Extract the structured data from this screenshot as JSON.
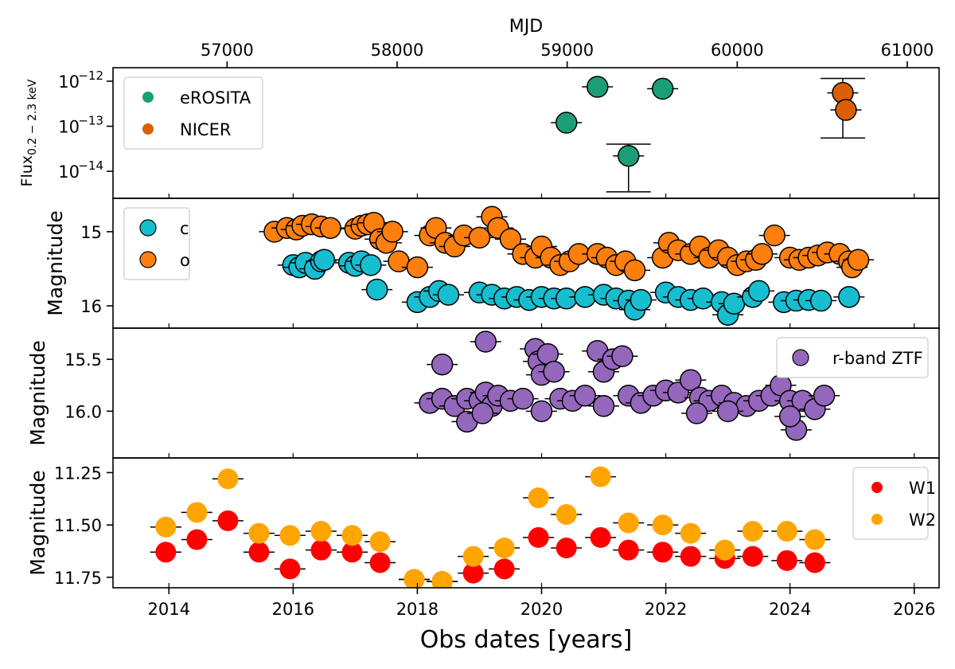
{
  "chart_data": {
    "type": "scatter",
    "top_axis": {
      "label": "MJD",
      "ticks": [
        57000,
        58000,
        59000,
        60000,
        61000
      ]
    },
    "x_axis": {
      "label": "Obs dates [years]",
      "ticks": [
        "2014",
        "2016",
        "2018",
        "2020",
        "2022",
        "2024",
        "2026"
      ],
      "xlim": [
        2013.1,
        2026.4
      ]
    },
    "panels": [
      {
        "id": "xray",
        "ylabel_main": "Flux",
        "ylabel_sub": "0.2 − 2.3 keV",
        "yscale": "log",
        "ylim_log10": [
          -14.6,
          -11.7
        ],
        "yticks": [
          {
            "base": "10",
            "exp": "−12"
          },
          {
            "base": "10",
            "exp": "−13"
          },
          {
            "base": "10",
            "exp": "−14"
          }
        ],
        "legend": {
          "position": "upper-left",
          "entries": [
            "eROSITA",
            "NICER"
          ]
        },
        "series": [
          {
            "name": "eROSITA",
            "color": "#1b9e77",
            "points": [
              {
                "x": 2020.4,
                "y": 1.2e-13,
                "xerr": 0.25
              },
              {
                "x": 2020.9,
                "y": 7.5e-13,
                "xerr": 0.25
              },
              {
                "x": 2021.4,
                "y": 2.2e-14,
                "xerr": 0.25,
                "ylo": 3.5e-15,
                "yhi": 4e-14
              },
              {
                "x": 2021.95,
                "y": 6.8e-13,
                "xerr": 0.25
              }
            ]
          },
          {
            "name": "NICER",
            "color": "#d95f02",
            "points": [
              {
                "x": 2024.85,
                "y": 5.5e-13,
                "xerr": 0.25,
                "ylo": 5.5e-14,
                "yhi": 1.15e-12
              },
              {
                "x": 2024.9,
                "y": 2.3e-13,
                "xerr": 0.25
              }
            ]
          }
        ]
      },
      {
        "id": "atlas",
        "ylabel_main": "Magnitude",
        "ylim": [
          16.3,
          14.55
        ],
        "yticks": [
          "15",
          "16"
        ],
        "legend": {
          "position": "upper-left",
          "entries": [
            "c",
            "o"
          ]
        },
        "series": [
          {
            "name": "c",
            "color": "#17becf",
            "points": [
              [
                2016.0,
                15.45
              ],
              [
                2016.1,
                15.48
              ],
              [
                2016.2,
                15.42
              ],
              [
                2016.35,
                15.5
              ],
              [
                2016.45,
                15.4
              ],
              [
                2016.5,
                15.38
              ],
              [
                2016.9,
                15.42
              ],
              [
                2017.0,
                15.46
              ],
              [
                2017.1,
                15.4
              ],
              [
                2017.25,
                15.45
              ],
              [
                2017.35,
                15.78
              ],
              [
                2018.0,
                15.95
              ],
              [
                2018.2,
                15.88
              ],
              [
                2018.35,
                15.8
              ],
              [
                2018.5,
                15.85
              ],
              [
                2019.0,
                15.82
              ],
              [
                2019.2,
                15.85
              ],
              [
                2019.4,
                15.9
              ],
              [
                2019.6,
                15.88
              ],
              [
                2019.8,
                15.92
              ],
              [
                2020.0,
                15.88
              ],
              [
                2020.2,
                15.9
              ],
              [
                2020.4,
                15.9
              ],
              [
                2020.7,
                15.88
              ],
              [
                2021.0,
                15.85
              ],
              [
                2021.2,
                15.9
              ],
              [
                2021.4,
                15.93
              ],
              [
                2021.5,
                16.05
              ],
              [
                2021.6,
                15.92
              ],
              [
                2022.0,
                15.82
              ],
              [
                2022.2,
                15.88
              ],
              [
                2022.4,
                15.92
              ],
              [
                2022.6,
                15.9
              ],
              [
                2022.9,
                15.95
              ],
              [
                2023.0,
                16.12
              ],
              [
                2023.1,
                15.97
              ],
              [
                2023.4,
                15.88
              ],
              [
                2023.5,
                15.8
              ],
              [
                2023.9,
                15.95
              ],
              [
                2024.1,
                15.93
              ],
              [
                2024.3,
                15.92
              ],
              [
                2024.5,
                15.93
              ],
              [
                2024.95,
                15.88
              ]
            ]
          },
          {
            "name": "o",
            "color": "#ff7f0e",
            "points": [
              [
                2015.7,
                15.0
              ],
              [
                2015.9,
                14.95
              ],
              [
                2016.05,
                14.97
              ],
              [
                2016.15,
                14.92
              ],
              [
                2016.3,
                14.9
              ],
              [
                2016.45,
                14.93
              ],
              [
                2016.6,
                14.95
              ],
              [
                2017.0,
                14.96
              ],
              [
                2017.1,
                14.92
              ],
              [
                2017.2,
                14.9
              ],
              [
                2017.3,
                14.88
              ],
              [
                2017.4,
                15.1
              ],
              [
                2017.5,
                15.15
              ],
              [
                2017.6,
                15.0
              ],
              [
                2017.7,
                15.4
              ],
              [
                2018.0,
                15.48
              ],
              [
                2018.2,
                15.05
              ],
              [
                2018.3,
                14.95
              ],
              [
                2018.45,
                15.15
              ],
              [
                2018.6,
                15.2
              ],
              [
                2018.75,
                15.05
              ],
              [
                2019.0,
                15.08
              ],
              [
                2019.2,
                14.8
              ],
              [
                2019.3,
                14.95
              ],
              [
                2019.5,
                15.1
              ],
              [
                2019.7,
                15.3
              ],
              [
                2019.9,
                15.35
              ],
              [
                2020.0,
                15.2
              ],
              [
                2020.15,
                15.35
              ],
              [
                2020.3,
                15.45
              ],
              [
                2020.45,
                15.4
              ],
              [
                2020.6,
                15.3
              ],
              [
                2020.9,
                15.3
              ],
              [
                2021.05,
                15.35
              ],
              [
                2021.2,
                15.45
              ],
              [
                2021.35,
                15.4
              ],
              [
                2021.5,
                15.52
              ],
              [
                2021.95,
                15.35
              ],
              [
                2022.05,
                15.15
              ],
              [
                2022.2,
                15.25
              ],
              [
                2022.4,
                15.3
              ],
              [
                2022.55,
                15.2
              ],
              [
                2022.7,
                15.35
              ],
              [
                2022.85,
                15.25
              ],
              [
                2023.0,
                15.35
              ],
              [
                2023.15,
                15.45
              ],
              [
                2023.3,
                15.4
              ],
              [
                2023.45,
                15.38
              ],
              [
                2023.55,
                15.3
              ],
              [
                2023.75,
                15.05
              ],
              [
                2024.0,
                15.35
              ],
              [
                2024.15,
                15.38
              ],
              [
                2024.3,
                15.35
              ],
              [
                2024.45,
                15.32
              ],
              [
                2024.6,
                15.28
              ],
              [
                2024.8,
                15.3
              ],
              [
                2024.95,
                15.4
              ],
              [
                2025.0,
                15.48
              ],
              [
                2025.1,
                15.38
              ]
            ]
          }
        ]
      },
      {
        "id": "ztf",
        "ylabel_main": "Magnitude",
        "ylim": [
          16.45,
          15.2
        ],
        "yticks": [
          "15.5",
          "16.0"
        ],
        "legend": {
          "position": "upper-right",
          "entries": [
            "r-band ZTF"
          ]
        },
        "series": [
          {
            "name": "r-band ZTF",
            "color": "#9467bd",
            "points": [
              [
                2018.4,
                15.55
              ],
              [
                2019.1,
                15.33
              ],
              [
                2018.2,
                15.92
              ],
              [
                2018.4,
                15.88
              ],
              [
                2018.6,
                15.95
              ],
              [
                2018.8,
                15.88
              ],
              [
                2019.0,
                15.9
              ],
              [
                2019.1,
                15.82
              ],
              [
                2019.2,
                15.95
              ],
              [
                2019.3,
                15.85
              ],
              [
                2019.5,
                15.9
              ],
              [
                2019.7,
                15.88
              ],
              [
                2019.9,
                15.4
              ],
              [
                2019.95,
                15.52
              ],
              [
                2020.0,
                15.65
              ],
              [
                2020.1,
                15.45
              ],
              [
                2020.2,
                15.62
              ],
              [
                2020.3,
                15.88
              ],
              [
                2020.5,
                15.9
              ],
              [
                2020.7,
                15.85
              ],
              [
                2020.9,
                15.42
              ],
              [
                2021.0,
                15.62
              ],
              [
                2021.15,
                15.5
              ],
              [
                2021.3,
                15.47
              ],
              [
                2021.4,
                15.85
              ],
              [
                2021.6,
                15.92
              ],
              [
                2021.8,
                15.85
              ],
              [
                2022.0,
                15.8
              ],
              [
                2022.2,
                15.82
              ],
              [
                2022.4,
                15.7
              ],
              [
                2022.55,
                15.87
              ],
              [
                2022.7,
                15.9
              ],
              [
                2022.9,
                15.85
              ],
              [
                2023.1,
                15.92
              ],
              [
                2023.3,
                15.95
              ],
              [
                2023.5,
                15.9
              ],
              [
                2023.7,
                15.85
              ],
              [
                2023.85,
                15.75
              ],
              [
                2024.0,
                15.9
              ],
              [
                2024.1,
                16.18
              ],
              [
                2024.2,
                15.9
              ],
              [
                2024.4,
                15.98
              ],
              [
                2024.55,
                15.85
              ],
              [
                2018.8,
                16.1
              ],
              [
                2019.05,
                16.02
              ],
              [
                2020.0,
                16.0
              ],
              [
                2021.0,
                15.95
              ],
              [
                2022.5,
                16.02
              ],
              [
                2023.0,
                16.0
              ],
              [
                2024.0,
                16.05
              ]
            ]
          }
        ]
      },
      {
        "id": "wise",
        "ylabel_main": "Magnitude",
        "ylim": [
          11.8,
          11.18
        ],
        "yticks": [
          "11.25",
          "11.50",
          "11.75"
        ],
        "legend": {
          "position": "upper-right",
          "entries": [
            "W1",
            "W2"
          ]
        },
        "series": [
          {
            "name": "W1",
            "color": "#ff0000",
            "points": [
              [
                2013.95,
                11.63
              ],
              [
                2014.45,
                11.57
              ],
              [
                2014.95,
                11.48
              ],
              [
                2015.45,
                11.63
              ],
              [
                2015.95,
                11.71
              ],
              [
                2016.45,
                11.62
              ],
              [
                2016.95,
                11.63
              ],
              [
                2017.4,
                11.68
              ],
              [
                2017.95,
                11.76
              ],
              [
                2018.4,
                11.77
              ],
              [
                2018.9,
                11.73
              ],
              [
                2019.4,
                11.71
              ],
              [
                2019.95,
                11.56
              ],
              [
                2020.4,
                11.61
              ],
              [
                2020.95,
                11.56
              ],
              [
                2021.4,
                11.62
              ],
              [
                2021.95,
                11.63
              ],
              [
                2022.4,
                11.65
              ],
              [
                2022.95,
                11.66
              ],
              [
                2023.4,
                11.65
              ],
              [
                2023.95,
                11.67
              ],
              [
                2024.4,
                11.68
              ]
            ]
          },
          {
            "name": "W2",
            "color": "#ffa500",
            "points": [
              [
                2013.95,
                11.51
              ],
              [
                2014.45,
                11.44
              ],
              [
                2014.95,
                11.28
              ],
              [
                2015.45,
                11.54
              ],
              [
                2015.95,
                11.55
              ],
              [
                2016.45,
                11.53
              ],
              [
                2016.95,
                11.55
              ],
              [
                2017.4,
                11.58
              ],
              [
                2017.95,
                11.76
              ],
              [
                2018.4,
                11.77
              ],
              [
                2018.9,
                11.65
              ],
              [
                2019.4,
                11.61
              ],
              [
                2019.95,
                11.37
              ],
              [
                2020.4,
                11.45
              ],
              [
                2020.95,
                11.27
              ],
              [
                2021.4,
                11.49
              ],
              [
                2021.95,
                11.5
              ],
              [
                2022.4,
                11.54
              ],
              [
                2022.95,
                11.62
              ],
              [
                2023.4,
                11.53
              ],
              [
                2023.95,
                11.53
              ],
              [
                2024.4,
                11.57
              ]
            ]
          }
        ]
      }
    ]
  }
}
